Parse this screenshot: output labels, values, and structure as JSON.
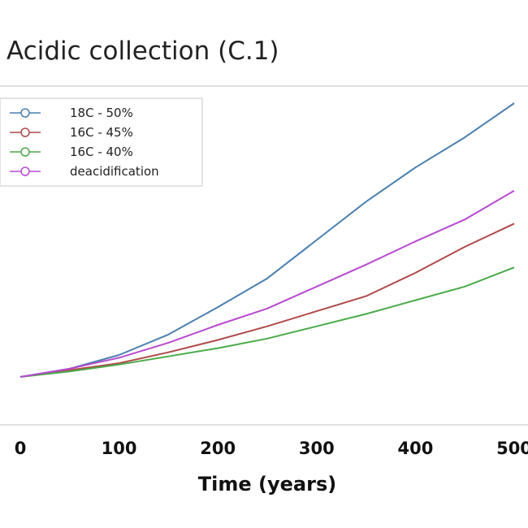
{
  "chart_data": {
    "type": "line",
    "title": "Acidic collection (C.1)",
    "xlabel": "Time (years)",
    "ylabel": "",
    "xlim": [
      0,
      500
    ],
    "ylim": [
      0,
      1
    ],
    "xticks": [
      "0",
      "100",
      "200",
      "300",
      "400",
      "500"
    ],
    "legend_position": "top-left",
    "grid": false,
    "series": [
      {
        "name": "18C - 50%",
        "color": "#4a7fb0",
        "x": [
          0,
          50,
          100,
          150,
          200,
          250,
          300,
          350,
          400,
          450,
          500
        ],
        "y": [
          0.0,
          0.03,
          0.08,
          0.155,
          0.255,
          0.36,
          0.5,
          0.64,
          0.765,
          0.875,
          1.0
        ]
      },
      {
        "name": "16C - 45%",
        "color": "#b04a4a",
        "x": [
          0,
          50,
          100,
          150,
          200,
          250,
          300,
          350,
          400,
          450,
          500
        ],
        "y": [
          0.0,
          0.025,
          0.05,
          0.09,
          0.135,
          0.185,
          0.24,
          0.295,
          0.38,
          0.475,
          0.56
        ]
      },
      {
        "name": "16C - 40%",
        "color": "#4aaa4a",
        "x": [
          0,
          50,
          100,
          150,
          200,
          250,
          300,
          350,
          400,
          450,
          500
        ],
        "y": [
          0.0,
          0.02,
          0.045,
          0.075,
          0.105,
          0.14,
          0.185,
          0.23,
          0.28,
          0.33,
          0.4
        ]
      },
      {
        "name": "deacidification",
        "color": "#b84ad0",
        "x": [
          0,
          50,
          100,
          150,
          200,
          250,
          300,
          350,
          400,
          450,
          500
        ],
        "y": [
          0.0,
          0.03,
          0.07,
          0.125,
          0.19,
          0.25,
          0.33,
          0.41,
          0.495,
          0.575,
          0.68
        ]
      }
    ]
  }
}
